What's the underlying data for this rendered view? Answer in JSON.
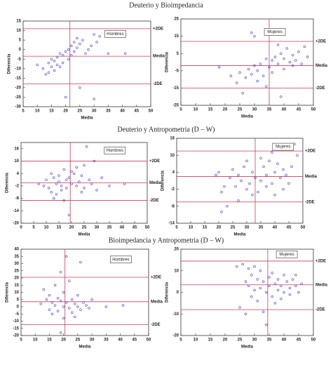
{
  "headings": [
    "Deuterio y Bioimpedancia",
    "Deuterio y Antropometria (D – W)",
    "Bioimpedancia y Antropometria (D – W)"
  ],
  "chart_data": [
    {
      "type": "scatter",
      "legend_label": "Hombres",
      "x_label": "Media",
      "y_label": "Diferencia",
      "xlim": [
        5,
        50
      ],
      "ylim": [
        -30,
        15
      ],
      "xticks": [
        5,
        10,
        15,
        20,
        25,
        30,
        35,
        40,
        45,
        50
      ],
      "yticks": [
        -30,
        -25,
        -20,
        -15,
        -10,
        -5,
        0,
        5,
        10,
        15
      ],
      "reference_lines": [
        {
          "value": 11,
          "label": "+2DE"
        },
        {
          "value": -3.5,
          "label": "Media"
        },
        {
          "value": -18,
          "label": "-2DE"
        }
      ],
      "vline": 21.5,
      "color": "#5a5ad0",
      "line_color": "#c83c5a",
      "x": [
        10,
        12,
        13,
        14,
        14,
        15,
        15,
        16,
        16,
        17,
        17,
        18,
        18,
        19,
        19,
        20,
        20,
        21,
        21,
        22,
        22,
        23,
        23,
        24,
        24,
        25,
        25,
        26,
        27,
        28,
        29,
        30,
        30,
        31,
        32,
        35,
        41
      ],
      "y": [
        -8,
        -10,
        -13,
        -7,
        -12,
        -5,
        -9,
        -6,
        -11,
        -4,
        -8,
        -2,
        -9,
        -3,
        -7,
        -1,
        -25,
        0,
        -5,
        2,
        -3,
        4,
        -1,
        6,
        1,
        -20,
        3,
        5,
        -2,
        0,
        2,
        8,
        -26,
        4,
        7,
        -2,
        -2
      ]
    },
    {
      "type": "scatter",
      "legend_label": "Mujeres",
      "x_label": "Media",
      "y_label": "Diferencia",
      "xlim": [
        5,
        50
      ],
      "ylim": [
        -25,
        25
      ],
      "xticks": [
        5,
        10,
        15,
        20,
        25,
        30,
        35,
        40,
        45,
        50
      ],
      "yticks": [
        -25,
        -15,
        -5,
        5,
        15,
        25
      ],
      "reference_lines": [
        {
          "value": 12,
          "label": "+2DE"
        },
        {
          "value": -2,
          "label": "Media"
        },
        {
          "value": -15,
          "label": "-2DE"
        }
      ],
      "vline": 35,
      "color": "#5a5ad0",
      "line_color": "#c83c5a",
      "x": [
        18,
        22,
        24,
        25,
        26,
        27,
        28,
        29,
        30,
        30,
        31,
        31,
        32,
        33,
        34,
        34,
        35,
        36,
        36,
        37,
        38,
        38,
        39,
        40,
        40,
        41,
        42,
        43,
        43,
        44,
        45,
        46,
        47,
        48,
        39,
        29
      ],
      "y": [
        -3,
        -8,
        -12,
        -6,
        -18,
        -9,
        -4,
        -7,
        -2,
        15,
        -11,
        -5,
        -1,
        -8,
        2,
        -14,
        -3,
        1,
        -6,
        3,
        -1,
        10,
        5,
        -4,
        2,
        8,
        0,
        4,
        -2,
        1,
        6,
        -1,
        9,
        3,
        -20,
        17
      ]
    },
    {
      "type": "scatter",
      "legend_label": "Hombres",
      "x_label": "Media",
      "y_label": "Diferencia",
      "xlim": [
        0,
        50
      ],
      "ylim": [
        -20,
        19
      ],
      "xticks": [
        0,
        5,
        10,
        15,
        20,
        25,
        30,
        35,
        40,
        45,
        50
      ],
      "yticks": [
        -20,
        -14,
        -8,
        -2,
        4,
        10,
        16
      ],
      "reference_lines": [
        {
          "value": 10,
          "label": "+2DE"
        },
        {
          "value": -0.5,
          "label": "Media"
        },
        {
          "value": -9,
          "label": "-2DE"
        }
      ],
      "vline": 19.5,
      "color": "#5a5ad0",
      "line_color": "#c83c5a",
      "x": [
        7,
        9,
        10,
        11,
        12,
        12,
        13,
        13,
        14,
        14,
        15,
        15,
        16,
        16,
        17,
        17,
        18,
        18,
        19,
        19,
        20,
        20,
        21,
        22,
        22,
        23,
        24,
        24,
        25,
        25,
        26,
        27,
        28,
        29,
        30,
        32,
        35,
        41
      ],
      "y": [
        -1,
        -2,
        1,
        -3,
        4,
        -5,
        -8,
        2,
        -1,
        -6,
        0,
        3,
        -2,
        -4,
        6,
        -9,
        1,
        -3,
        -16,
        2,
        5,
        -1,
        4,
        -2,
        7,
        0,
        3,
        -5,
        8,
        -3,
        17,
        1,
        -1,
        10,
        -4,
        2,
        -2,
        -1
      ]
    },
    {
      "type": "scatter",
      "legend_label": "Mujeres",
      "x_label": "Media",
      "y_label": "Diferencia",
      "xlim": [
        5,
        50
      ],
      "ylim": [
        -14,
        16
      ],
      "xticks": [
        5,
        10,
        15,
        20,
        25,
        30,
        35,
        40,
        45,
        50
      ],
      "yticks": [
        -14,
        -8,
        -2,
        4,
        10,
        16
      ],
      "reference_lines": [
        {
          "value": 11.5,
          "label": "+2DE"
        },
        {
          "value": 2.5,
          "label": "Media"
        },
        {
          "value": -6.5,
          "label": "-2DE"
        }
      ],
      "vline": 33,
      "color": "#5a5ad0",
      "line_color": "#c83c5a",
      "x": [
        19,
        20,
        21,
        22,
        23,
        24,
        25,
        26,
        27,
        27,
        28,
        29,
        30,
        30,
        31,
        32,
        32,
        33,
        34,
        35,
        35,
        36,
        37,
        37,
        38,
        39,
        39,
        40,
        40,
        41,
        42,
        43,
        43,
        44,
        45,
        46,
        47,
        48,
        21
      ],
      "y": [
        3,
        4,
        -3,
        -1,
        -8,
        2,
        5,
        -1,
        -6,
        3,
        1,
        6,
        -2,
        8,
        0,
        4,
        -4,
        2,
        -3,
        1,
        9,
        6,
        -1,
        3,
        8,
        0,
        11,
        4,
        -4,
        7,
        2,
        5,
        -2,
        3,
        0,
        6,
        14,
        10,
        -10
      ]
    },
    {
      "type": "scatter",
      "legend_label": "Hombres",
      "x_label": "Media",
      "y_label": "Diferencia",
      "xlim": [
        5,
        50
      ],
      "ylim": [
        -20,
        40
      ],
      "xticks": [
        5,
        10,
        15,
        20,
        25,
        30,
        35,
        40,
        45,
        50
      ],
      "yticks": [
        -20,
        -15,
        -10,
        -5,
        0,
        5,
        10,
        15,
        20,
        25,
        30,
        35,
        40
      ],
      "reference_lines": [
        {
          "value": 20.5,
          "label": "+2DE"
        },
        {
          "value": 3.5,
          "label": "Media"
        },
        {
          "value": -12.5,
          "label": "-2DE"
        }
      ],
      "vline": 20.5,
      "color": "#5a5ad0",
      "line_color": "#c83c5a",
      "x": [
        12,
        13,
        14,
        15,
        15,
        16,
        16,
        17,
        17,
        18,
        18,
        19,
        19,
        20,
        20,
        20,
        21,
        21,
        22,
        22,
        23,
        23,
        24,
        24,
        25,
        25,
        26,
        26,
        27,
        28,
        29,
        30,
        35,
        41,
        19
      ],
      "y": [
        2,
        12,
        5,
        -2,
        8,
        3,
        -5,
        1,
        15,
        6,
        -3,
        4,
        24,
        0,
        10,
        -8,
        35,
        3,
        -1,
        18,
        5,
        -4,
        2,
        -7,
        0,
        8,
        31,
        -2,
        3,
        1,
        -1,
        5,
        0,
        1,
        -18
      ]
    },
    {
      "type": "scatter",
      "legend_label": "Mujeres",
      "x_label": "Media",
      "y_label": "Diferencia",
      "xlim": [
        5,
        50
      ],
      "ylim": [
        -20,
        20
      ],
      "xticks": [
        5,
        10,
        15,
        20,
        25,
        30,
        35,
        40,
        45,
        50
      ],
      "yticks": [
        -20,
        -10,
        0,
        10,
        20
      ],
      "reference_lines": [
        {
          "value": 14.5,
          "label": "+2DE"
        },
        {
          "value": 3.5,
          "label": "Media"
        },
        {
          "value": -8,
          "label": "-2DE"
        }
      ],
      "vline": 34.5,
      "color": "#5a5ad0",
      "line_color": "#c83c5a",
      "x": [
        24,
        25,
        26,
        27,
        27,
        28,
        28,
        29,
        29,
        30,
        30,
        31,
        31,
        32,
        32,
        33,
        33,
        34,
        34,
        35,
        35,
        36,
        36,
        37,
        37,
        38,
        38,
        39,
        39,
        40,
        40,
        41,
        42,
        42,
        43,
        44,
        44,
        45,
        46
      ],
      "y": [
        12,
        -7,
        13,
        5,
        -10,
        11,
        3,
        8,
        -2,
        12,
        1,
        6,
        -4,
        10,
        2,
        -9,
        5,
        0,
        -15,
        7,
        3,
        -2,
        9,
        4,
        -5,
        1,
        6,
        3,
        -3,
        8,
        0,
        5,
        2,
        -1,
        6,
        3,
        8,
        0,
        4
      ]
    }
  ]
}
